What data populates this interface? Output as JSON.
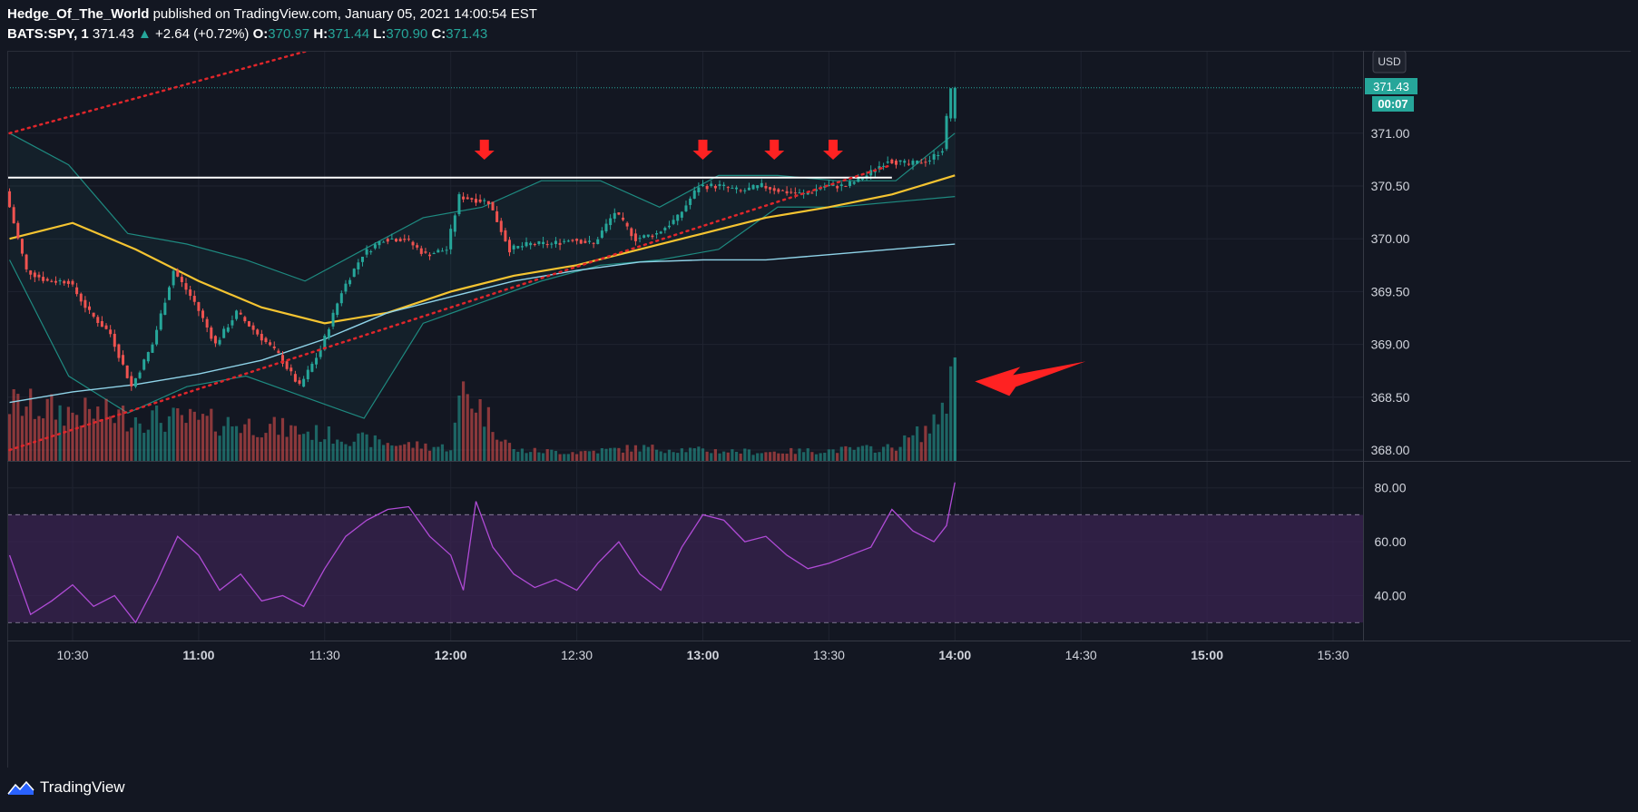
{
  "header": {
    "author": "Hedge_Of_The_World",
    "published": "published on TradingView.com, January 05, 2021 14:00:54 EST",
    "symbol": "BATS:SPY, 1",
    "last": "371.43",
    "change_arrow": "▲",
    "change": "+2.64 (+0.72%)",
    "o_label": "O:",
    "o_value": "370.97",
    "h_label": "H:",
    "h_value": "371.44",
    "l_label": "L:",
    "l_value": "370.90",
    "c_label": "C:",
    "c_value": "371.43"
  },
  "currency": "USD",
  "last_price_label": "371.43",
  "countdown_label": "00:07",
  "footer": {
    "brand": "TradingView"
  },
  "colors": {
    "bg": "#131722",
    "up": "#26a69a",
    "down": "#ef5350",
    "ma_yellow": "#f5c431",
    "ma_light": "#8fd3e8",
    "bb": "#1e8a80",
    "rsi": "#b04bd6",
    "annotation": "#ff2222",
    "level": "#ffffff"
  },
  "chart_data": [
    {
      "type": "candlestick",
      "symbol": "BATS:SPY",
      "interval": "1",
      "x_ticks": [
        "10:30",
        "11:00",
        "11:30",
        "12:00",
        "12:30",
        "13:00",
        "13:30",
        "14:00",
        "14:30",
        "15:00",
        "15:30"
      ],
      "y_ticks": [
        "371.00",
        "370.50",
        "370.00",
        "369.50",
        "369.00",
        "368.50",
        "368.00"
      ],
      "ylim": [
        367.97,
        371.65
      ],
      "price_path": [
        [
          "10:15",
          370.45
        ],
        [
          "10:20",
          369.7
        ],
        [
          "10:25",
          369.6
        ],
        [
          "10:30",
          369.6
        ],
        [
          "10:35",
          369.3
        ],
        [
          "10:40",
          369.1
        ],
        [
          "10:45",
          368.6
        ],
        [
          "10:50",
          369.0
        ],
        [
          "10:55",
          369.7
        ],
        [
          "11:00",
          369.4
        ],
        [
          "11:05",
          369.0
        ],
        [
          "11:10",
          369.3
        ],
        [
          "11:15",
          369.1
        ],
        [
          "11:20",
          368.9
        ],
        [
          "11:25",
          368.6
        ],
        [
          "11:30",
          368.95
        ],
        [
          "11:35",
          369.5
        ],
        [
          "11:40",
          369.85
        ],
        [
          "11:45",
          370.0
        ],
        [
          "11:50",
          370.0
        ],
        [
          "11:55",
          369.85
        ],
        [
          "12:00",
          369.9
        ],
        [
          "12:03",
          370.4
        ],
        [
          "12:10",
          370.35
        ],
        [
          "12:15",
          369.9
        ],
        [
          "12:20",
          369.95
        ],
        [
          "12:25",
          369.95
        ],
        [
          "12:30",
          370.0
        ],
        [
          "12:35",
          369.95
        ],
        [
          "12:40",
          370.25
        ],
        [
          "12:45",
          370.0
        ],
        [
          "12:50",
          370.05
        ],
        [
          "12:55",
          370.2
        ],
        [
          "13:00",
          370.5
        ],
        [
          "13:05",
          370.5
        ],
        [
          "13:10",
          370.45
        ],
        [
          "13:15",
          370.5
        ],
        [
          "13:20",
          370.45
        ],
        [
          "13:25",
          370.42
        ],
        [
          "13:30",
          370.5
        ],
        [
          "13:35",
          370.5
        ],
        [
          "13:40",
          370.6
        ],
        [
          "13:45",
          370.75
        ],
        [
          "13:50",
          370.7
        ],
        [
          "13:55",
          370.75
        ],
        [
          "13:58",
          370.85
        ],
        [
          "14:00",
          371.43
        ]
      ],
      "overlays": [
        {
          "type": "moving-average",
          "name": "MA yellow",
          "values": [
            370.0,
            370.15,
            369.9,
            369.6,
            369.35,
            369.2,
            369.3,
            369.5,
            369.65,
            369.75,
            369.9,
            370.05,
            370.2,
            370.3,
            370.42,
            370.6
          ]
        },
        {
          "type": "moving-average",
          "name": "MA light blue",
          "values": [
            368.45,
            368.55,
            368.62,
            368.72,
            368.85,
            369.05,
            369.3,
            369.45,
            369.6,
            369.7,
            369.78,
            369.8,
            369.8,
            369.85,
            369.9,
            369.95
          ]
        }
      ],
      "bollinger_bands": {
        "upper": [
          371.0,
          370.7,
          370.05,
          369.95,
          369.8,
          369.6,
          369.9,
          370.2,
          370.3,
          370.55,
          370.55,
          370.3,
          370.6,
          370.6,
          370.55,
          370.55,
          371.0
        ],
        "lower": [
          369.8,
          368.7,
          368.35,
          368.6,
          368.7,
          368.5,
          368.3,
          369.2,
          369.4,
          369.6,
          369.75,
          369.8,
          369.9,
          370.3,
          370.3,
          370.35,
          370.4
        ]
      },
      "horizontal_level": 370.58,
      "trendlines": [
        {
          "style": "dotted",
          "from": [
            "10:15",
            371.0
          ],
          "to": [
            "11:55",
            372.1
          ]
        },
        {
          "style": "dotted",
          "from": [
            "10:15",
            368.0
          ],
          "to": [
            "13:45",
            370.7
          ]
        }
      ],
      "annotations": [
        {
          "type": "down-arrow",
          "time": "12:08"
        },
        {
          "type": "down-arrow",
          "time": "13:00"
        },
        {
          "type": "down-arrow",
          "time": "13:17"
        },
        {
          "type": "down-arrow",
          "time": "13:31"
        },
        {
          "type": "left-arrow",
          "target": "volume spike at 14:00"
        }
      ],
      "last_price": 371.43
    },
    {
      "type": "bar",
      "name": "Volume",
      "x": [
        "10:15",
        "10:30",
        "10:45",
        "11:00",
        "11:15",
        "11:30",
        "11:45",
        "12:00",
        "12:03",
        "12:15",
        "12:30",
        "12:45",
        "13:00",
        "13:15",
        "13:30",
        "13:45",
        "13:55",
        "14:00"
      ],
      "values": [
        0.65,
        0.55,
        0.5,
        0.45,
        0.4,
        0.3,
        0.2,
        0.15,
        0.85,
        0.12,
        0.1,
        0.15,
        0.12,
        0.1,
        0.12,
        0.15,
        0.4,
        1.0
      ]
    },
    {
      "type": "line",
      "name": "RSI",
      "y_ticks": [
        "80.00",
        "60.00",
        "40.00"
      ],
      "ylim": [
        25,
        88
      ],
      "bands": [
        70,
        30
      ],
      "x": [
        "10:15",
        "10:20",
        "10:25",
        "10:30",
        "10:35",
        "10:40",
        "10:45",
        "10:50",
        "10:55",
        "11:00",
        "11:05",
        "11:10",
        "11:15",
        "11:20",
        "11:25",
        "11:30",
        "11:35",
        "11:40",
        "11:45",
        "11:50",
        "11:55",
        "12:00",
        "12:03",
        "12:06",
        "12:10",
        "12:15",
        "12:20",
        "12:25",
        "12:30",
        "12:35",
        "12:40",
        "12:45",
        "12:50",
        "12:55",
        "13:00",
        "13:05",
        "13:10",
        "13:15",
        "13:20",
        "13:25",
        "13:30",
        "13:35",
        "13:40",
        "13:45",
        "13:50",
        "13:55",
        "13:58",
        "14:00"
      ],
      "values": [
        55,
        33,
        38,
        44,
        36,
        40,
        30,
        45,
        62,
        55,
        42,
        48,
        38,
        40,
        36,
        50,
        62,
        68,
        72,
        73,
        62,
        55,
        42,
        75,
        58,
        48,
        43,
        46,
        42,
        52,
        60,
        48,
        42,
        58,
        70,
        68,
        60,
        62,
        55,
        50,
        52,
        55,
        58,
        72,
        64,
        60,
        66,
        82
      ]
    }
  ]
}
